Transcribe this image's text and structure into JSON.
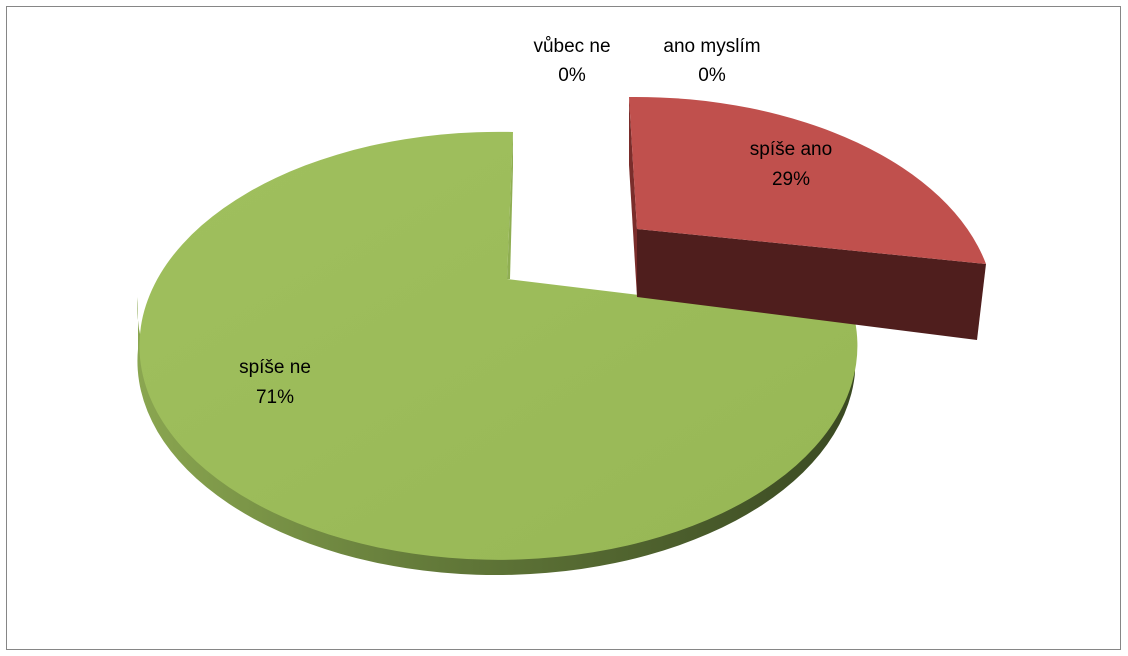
{
  "chart_data": {
    "type": "pie",
    "style": "3d-exploded",
    "legend": "none",
    "slices": [
      {
        "label": "spíše ano",
        "value": 29,
        "display": "29%",
        "color": "#C0504D"
      },
      {
        "label": "spíše ne",
        "value": 71,
        "display": "71%",
        "color": "#9BBB59"
      },
      {
        "label": "vůbec ne",
        "value": 0,
        "display": "0%",
        "color": "#4F81BD"
      },
      {
        "label": "ano myslím",
        "value": 0,
        "display": "0%",
        "color": "#8064A2"
      }
    ]
  }
}
